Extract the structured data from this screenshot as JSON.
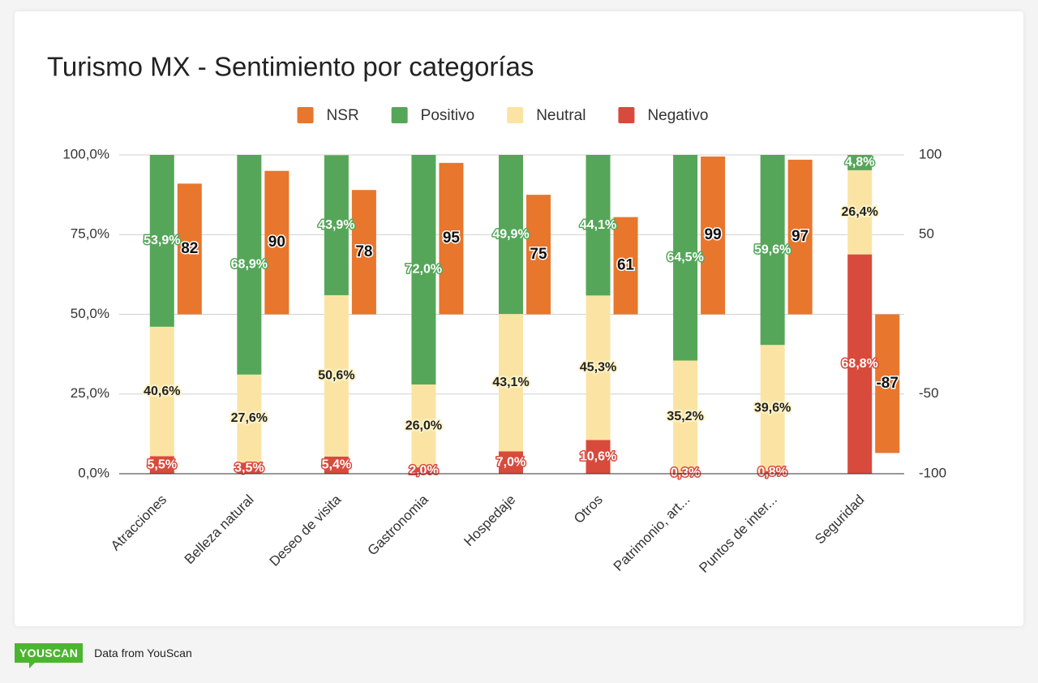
{
  "chart_data": {
    "type": "bar",
    "title": "Turismo MX - Sentimiento por categorías",
    "categories": [
      "Atracciones",
      "Belleza natural",
      "Deseo de visita",
      "Gastronomia",
      "Hospedaje",
      "Otros",
      "Patrimonio, art...",
      "Puntos de inter...",
      "Seguridad"
    ],
    "series": [
      {
        "name": "NSR",
        "color": "#e8762c",
        "axis": "y2",
        "values": [
          82,
          90,
          78,
          95,
          75,
          61,
          99,
          97,
          -87
        ]
      },
      {
        "name": "Positivo",
        "color": "#56a65a",
        "values": [
          53.9,
          68.9,
          43.9,
          72.0,
          49.9,
          44.1,
          64.5,
          59.6,
          4.8
        ],
        "value_labels": [
          "53,9%",
          "68,9%",
          "43,9%",
          "72,0%",
          "49,9%",
          "44,1%",
          "64,5%",
          "59,6%",
          "4,8%"
        ]
      },
      {
        "name": "Neutral",
        "color": "#fbe4a3",
        "values": [
          40.6,
          27.6,
          50.6,
          26.0,
          43.1,
          45.3,
          35.2,
          39.6,
          26.4
        ],
        "value_labels": [
          "40,6%",
          "27,6%",
          "50,6%",
          "26,0%",
          "43,1%",
          "45,3%",
          "35,2%",
          "39,6%",
          "26,4%"
        ]
      },
      {
        "name": "Negativo",
        "color": "#d84a3c",
        "values": [
          5.5,
          3.5,
          5.4,
          2.0,
          7.0,
          10.6,
          0.3,
          0.8,
          68.8
        ],
        "value_labels": [
          "5,5%",
          "3,5%",
          "5,4%",
          "2,0%",
          "7,0%",
          "10,6%",
          "0,3%",
          "0,8%",
          "68,8%"
        ]
      }
    ],
    "ylim": [
      0,
      100
    ],
    "yticks": [
      {
        "value": 0,
        "label": "0,0%"
      },
      {
        "value": 25,
        "label": "25,0%"
      },
      {
        "value": 50,
        "label": "50,0%"
      },
      {
        "value": 75,
        "label": "75,0%"
      },
      {
        "value": 100,
        "label": "100,0%"
      }
    ],
    "y2lim": [
      -100,
      100
    ],
    "y2ticks": [
      -100,
      -50,
      50,
      100
    ],
    "grid": true,
    "legend": "top"
  },
  "footer": {
    "logo": "YOUSCAN",
    "text": "Data from YouScan"
  }
}
